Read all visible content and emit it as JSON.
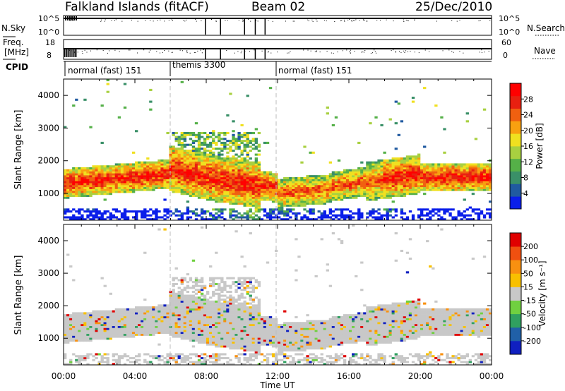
{
  "header": {
    "station": "Falkland Islands (fitACF)",
    "beam": "Beam 02",
    "date": "25/Dec/2010"
  },
  "top_panels": {
    "nsky_label": "N.Sky",
    "nsearch_label": "N.Search",
    "nsky_ticks": [
      "10^5",
      "10^0"
    ],
    "nsearch_ticks": [
      "10^5",
      "10^0"
    ],
    "freq_label_1": "Freq.",
    "freq_label_2": "[MHz]",
    "freq_ticks": [
      "18",
      "8"
    ],
    "nave_label": "Nave",
    "nave_ticks": [
      "60",
      "0"
    ],
    "cpid_label": "CPID"
  },
  "cpid_segments": [
    {
      "label": "normal (fast) 151",
      "start_hour": 0
    },
    {
      "label": "themis 3300",
      "start_hour": 6
    },
    {
      "label": "normal (fast) 151",
      "start_hour": 12
    }
  ],
  "chart_data": [
    {
      "type": "heatmap",
      "name": "power",
      "ylabel": "Slant Range [km]",
      "xlabel": "",
      "xlim": [
        0,
        24
      ],
      "ylim": [
        180,
        4500
      ],
      "yticks": [
        1000,
        2000,
        3000,
        4000
      ],
      "colorbar_label": "Power [dB]",
      "colorbar_ticks": [
        "28",
        "24",
        "20",
        "16",
        "12",
        "8",
        "4"
      ],
      "colorbar_range": [
        0,
        30
      ],
      "colors": [
        "#0a1eea",
        "#205aa0",
        "#3a9068",
        "#55b048",
        "#a8d040",
        "#f0e020",
        "#f8a010",
        "#f06010",
        "#e82010",
        "#ff0000"
      ]
    },
    {
      "type": "heatmap",
      "name": "velocity",
      "ylabel": "Slant Range [km]",
      "xlabel": "Time UT",
      "xlim": [
        0,
        24
      ],
      "ylim": [
        180,
        4500
      ],
      "yticks": [
        1000,
        2000,
        3000,
        4000
      ],
      "xticks": [
        "00:00",
        "04:00",
        "08:00",
        "12:00",
        "16:00",
        "20:00",
        "00:00"
      ],
      "colorbar_label": "Velocity [m s⁻¹]",
      "colorbar_ticks": [
        "200",
        "100",
        "50",
        "15",
        "-15",
        "-50",
        "-100",
        "-200"
      ],
      "colors": [
        "#1020c0",
        "#2060a8",
        "#30a060",
        "#70d040",
        "#c8c8c8",
        "#f8c000",
        "#f89010",
        "#f05010",
        "#e00000"
      ]
    }
  ]
}
